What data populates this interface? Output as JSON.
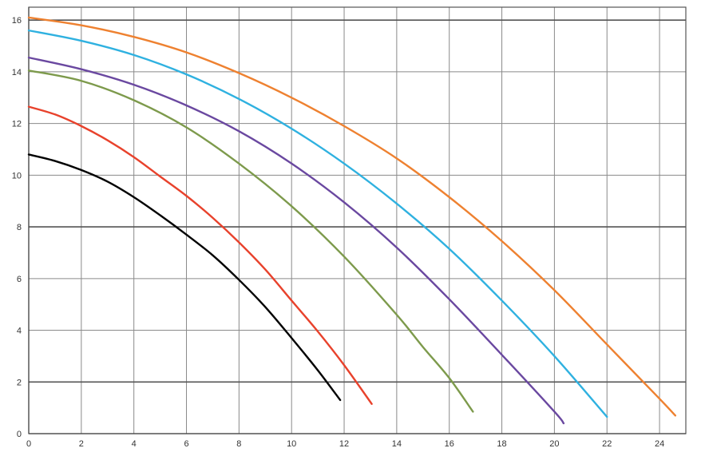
{
  "chart_data": {
    "type": "line",
    "title": "",
    "xlabel": "",
    "ylabel": "",
    "xlim": [
      0,
      25
    ],
    "ylim": [
      0,
      16.5
    ],
    "x_ticks": [
      0,
      2,
      4,
      6,
      8,
      10,
      12,
      14,
      16,
      18,
      20,
      22,
      24
    ],
    "y_ticks": [
      0,
      2,
      4,
      6,
      8,
      10,
      12,
      14,
      16
    ],
    "y_major_ticks": [
      0,
      2,
      8,
      16
    ],
    "grid": true,
    "legend": "none",
    "series": [
      {
        "color": "#000000",
        "points": [
          [
            0,
            10.8
          ],
          [
            1,
            10.55
          ],
          [
            2,
            10.2
          ],
          [
            3,
            9.75
          ],
          [
            4,
            9.15
          ],
          [
            5,
            8.45
          ],
          [
            6,
            7.7
          ],
          [
            7,
            6.9
          ],
          [
            8,
            5.95
          ],
          [
            9,
            4.9
          ],
          [
            10,
            3.7
          ],
          [
            11,
            2.45
          ],
          [
            11.85,
            1.3
          ]
        ]
      },
      {
        "color": "#e8422c",
        "points": [
          [
            0,
            12.65
          ],
          [
            1,
            12.35
          ],
          [
            2,
            11.9
          ],
          [
            3,
            11.35
          ],
          [
            4,
            10.7
          ],
          [
            5,
            9.95
          ],
          [
            6,
            9.2
          ],
          [
            7,
            8.35
          ],
          [
            8,
            7.4
          ],
          [
            9,
            6.35
          ],
          [
            10,
            5.15
          ],
          [
            11,
            3.95
          ],
          [
            12,
            2.65
          ],
          [
            13.05,
            1.15
          ]
        ]
      },
      {
        "color": "#7d9a4c",
        "points": [
          [
            0,
            14.05
          ],
          [
            2,
            13.65
          ],
          [
            4,
            12.9
          ],
          [
            6,
            11.85
          ],
          [
            8,
            10.45
          ],
          [
            10,
            8.8
          ],
          [
            12,
            6.85
          ],
          [
            14,
            4.6
          ],
          [
            15,
            3.35
          ],
          [
            16,
            2.15
          ],
          [
            16.9,
            0.85
          ]
        ]
      },
      {
        "color": "#6a48a0",
        "points": [
          [
            0,
            14.55
          ],
          [
            2,
            14.1
          ],
          [
            4,
            13.5
          ],
          [
            6,
            12.7
          ],
          [
            8,
            11.7
          ],
          [
            10,
            10.45
          ],
          [
            12,
            8.95
          ],
          [
            14,
            7.2
          ],
          [
            16,
            5.2
          ],
          [
            18,
            3.05
          ],
          [
            20,
            0.85
          ],
          [
            20.35,
            0.4
          ]
        ]
      },
      {
        "color": "#2fb1e0",
        "points": [
          [
            0,
            15.6
          ],
          [
            2,
            15.2
          ],
          [
            4,
            14.65
          ],
          [
            6,
            13.9
          ],
          [
            8,
            12.95
          ],
          [
            10,
            11.8
          ],
          [
            12,
            10.45
          ],
          [
            14,
            8.9
          ],
          [
            16,
            7.15
          ],
          [
            18,
            5.15
          ],
          [
            20,
            3.0
          ],
          [
            22,
            0.65
          ]
        ]
      },
      {
        "color": "#ee8130",
        "points": [
          [
            0,
            16.1
          ],
          [
            2,
            15.8
          ],
          [
            4,
            15.35
          ],
          [
            6,
            14.75
          ],
          [
            8,
            13.95
          ],
          [
            10,
            13.0
          ],
          [
            12,
            11.9
          ],
          [
            14,
            10.65
          ],
          [
            16,
            9.15
          ],
          [
            18,
            7.45
          ],
          [
            20,
            5.55
          ],
          [
            22,
            3.45
          ],
          [
            24,
            1.35
          ],
          [
            24.6,
            0.7
          ]
        ]
      }
    ]
  }
}
